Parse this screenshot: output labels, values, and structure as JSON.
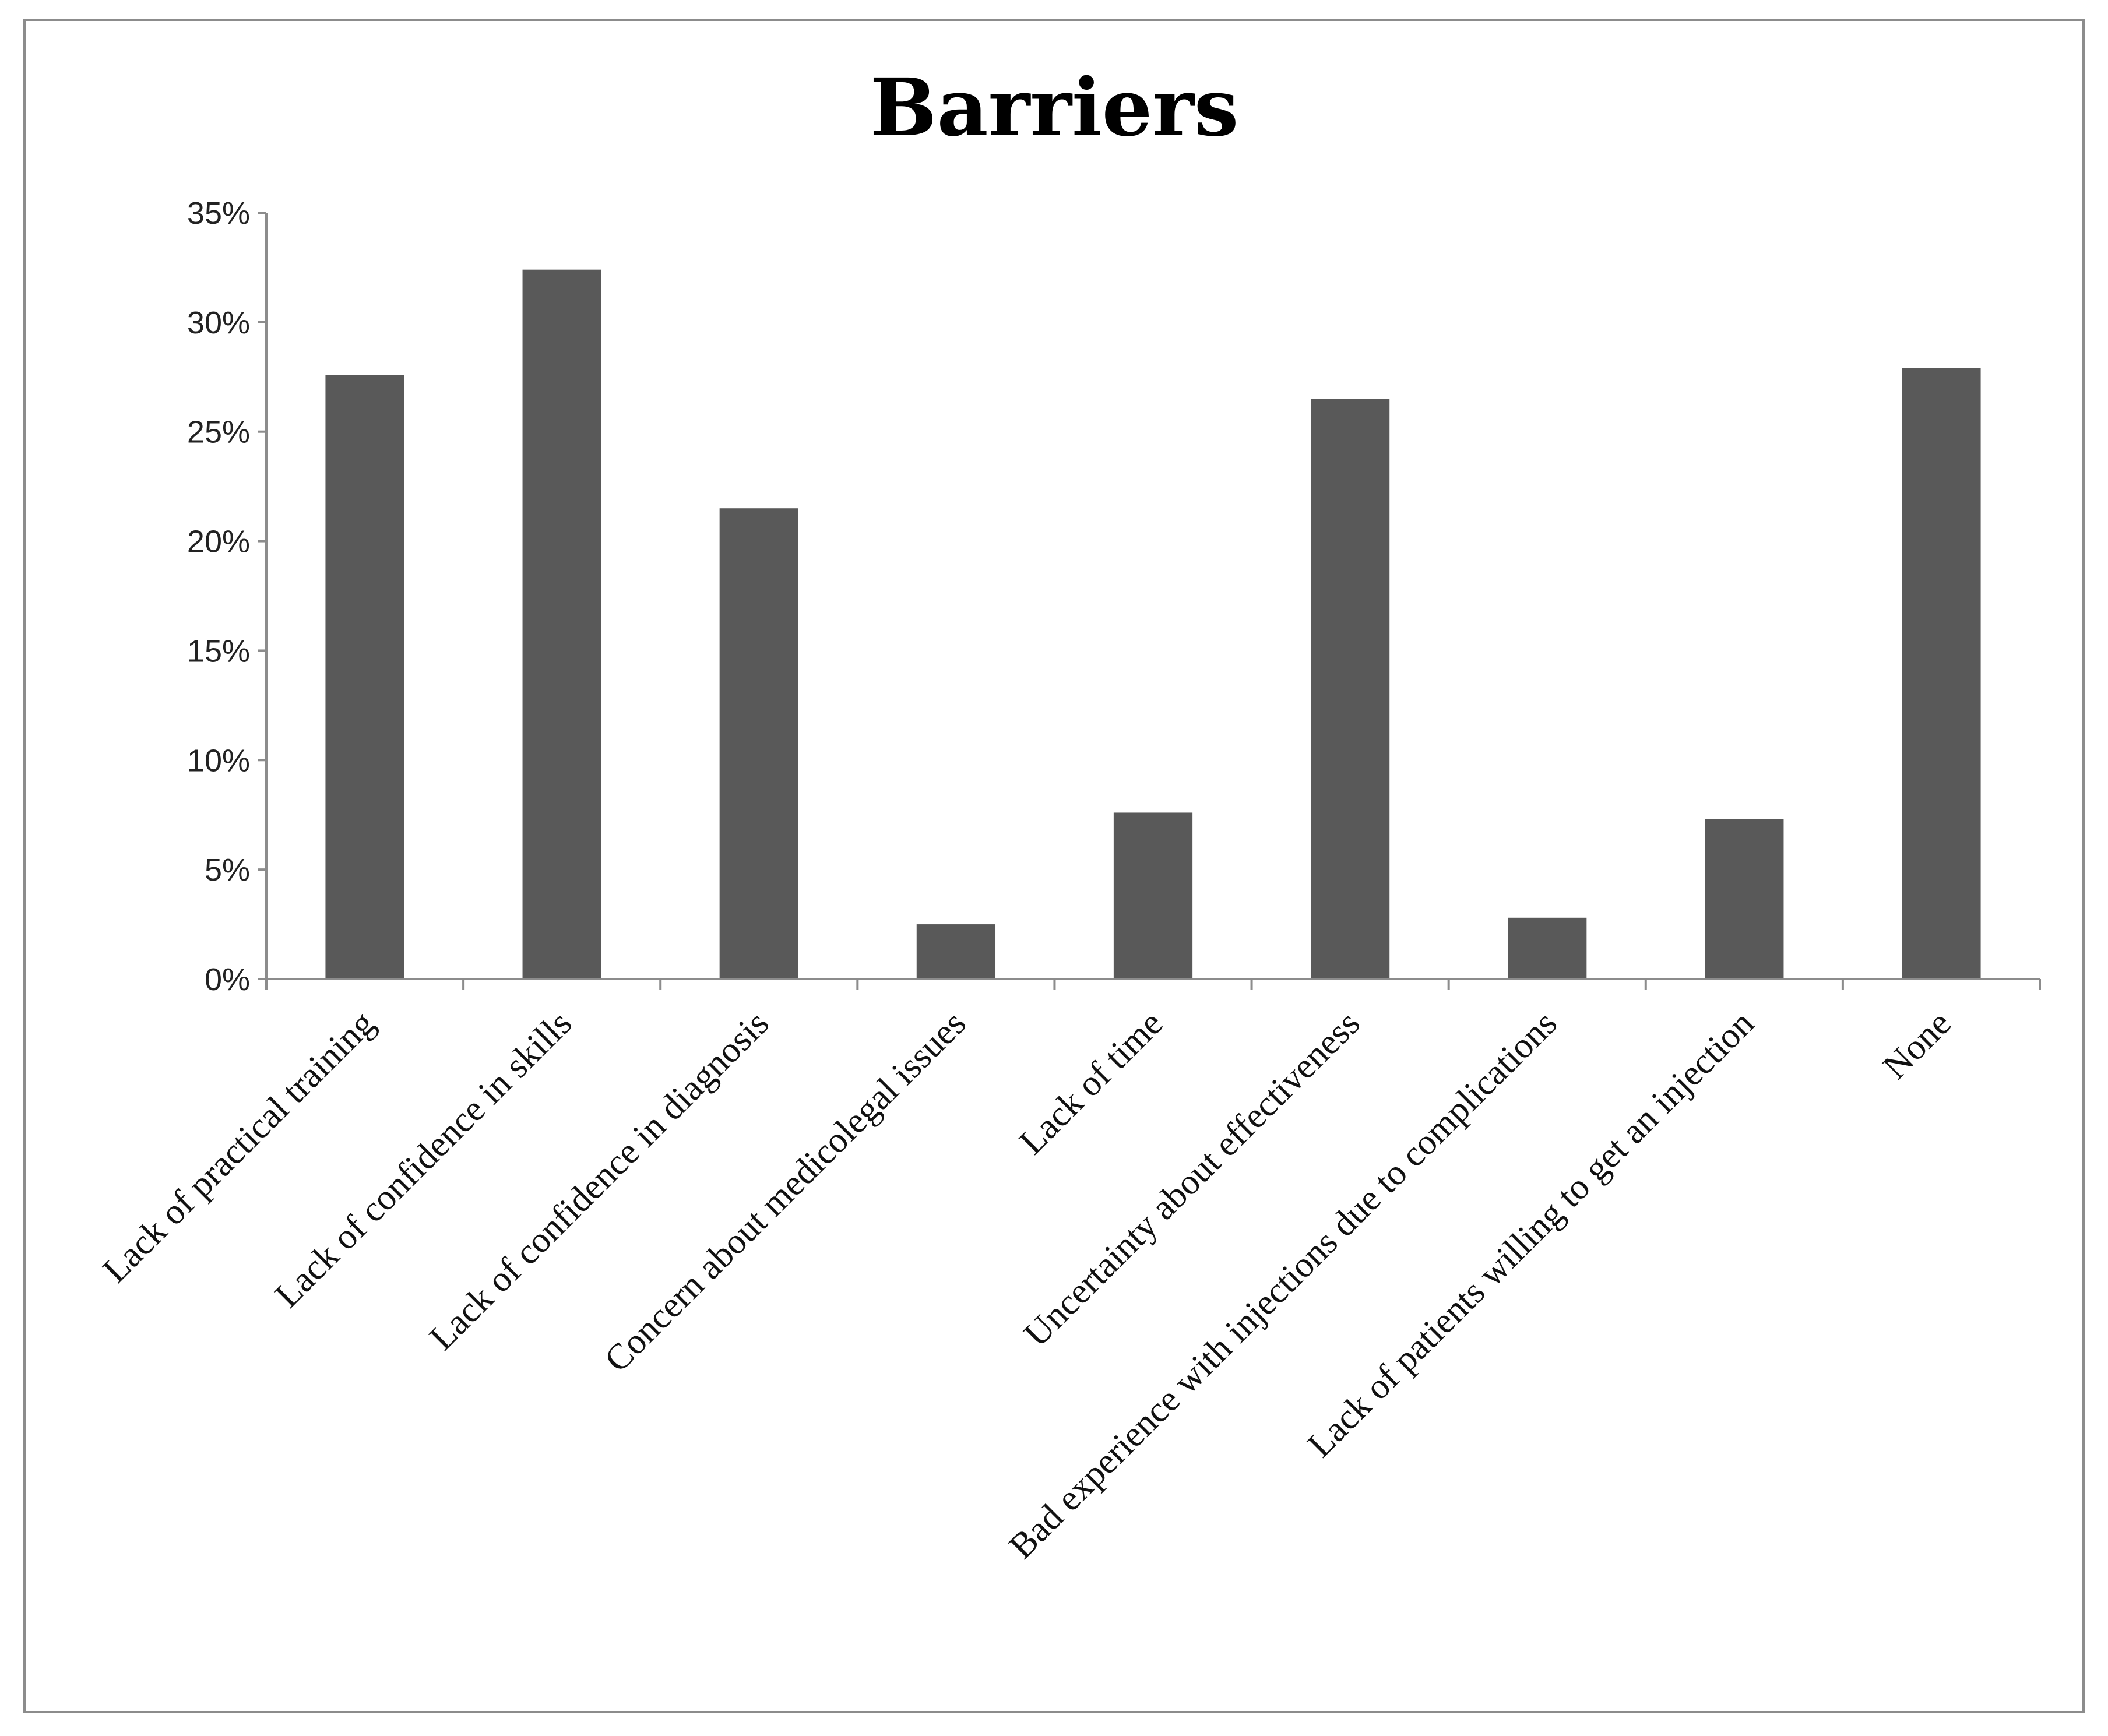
{
  "chart_data": {
    "type": "bar",
    "title": "Barriers",
    "xlabel": "",
    "ylabel": "",
    "ylim": [
      0,
      35
    ],
    "y_tick_step": 5,
    "y_tick_labels": [
      "0%",
      "5%",
      "10%",
      "15%",
      "20%",
      "25%",
      "30%",
      "35%"
    ],
    "y_unit": "%",
    "grid": false,
    "legend": "none",
    "bar_color": "#595959",
    "categories": [
      "Lack of practical training",
      "Lack of confidence in skills",
      "Lack of confidence in diagnosis",
      "Concern about medicolegal issues",
      "Lack of time",
      "Uncertainty about effectiveness",
      "Bad experience with injections due to complications",
      "Lack of patients willing to get an injection",
      "None"
    ],
    "values": [
      27.6,
      32.4,
      21.5,
      2.5,
      7.6,
      26.5,
      2.8,
      7.3,
      27.9
    ]
  }
}
